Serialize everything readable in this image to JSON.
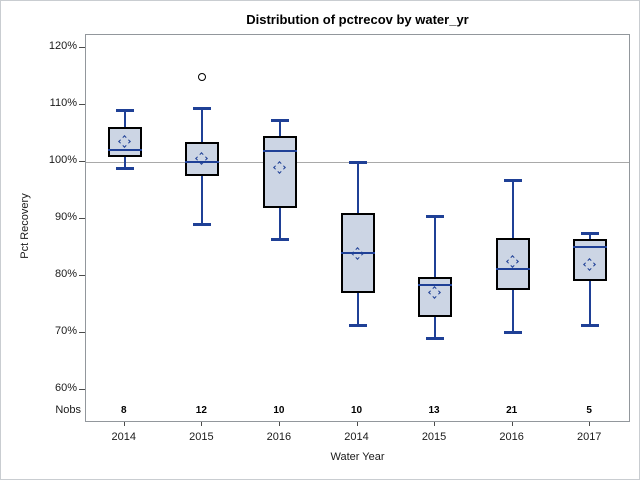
{
  "chart_data": {
    "type": "box",
    "title": "Distribution of pctrecov by water_yr",
    "xlabel": "Water Year",
    "ylabel": "Pct Recovery",
    "categories": [
      "2014",
      "2015",
      "2016",
      "2014",
      "2015",
      "2016",
      "2017"
    ],
    "nobs_label": "Nobs",
    "nobs": [
      8,
      12,
      10,
      10,
      13,
      21,
      5
    ],
    "y_ticks": [
      60,
      70,
      80,
      90,
      100,
      110,
      120
    ],
    "y_tick_suffix": "%",
    "ylim": [
      54.6,
      122.3
    ],
    "reference_line": 100,
    "grid": false,
    "legend": "none",
    "boxes": [
      {
        "category": "2014",
        "nobs": 8,
        "whisker_low": 98.7,
        "q1": 100.8,
        "median": 102.1,
        "q3": 106.2,
        "whisker_high": 109.2,
        "mean": 103.5,
        "outliers": []
      },
      {
        "category": "2015",
        "nobs": 12,
        "whisker_low": 89.0,
        "q1": 97.5,
        "median": 100.0,
        "q3": 103.5,
        "whisker_high": 109.4,
        "mean": 100.6,
        "outliers": [
          115
        ]
      },
      {
        "category": "2016",
        "nobs": 10,
        "whisker_low": 86.3,
        "q1": 92.0,
        "median": 102.0,
        "q3": 104.6,
        "whisker_high": 107.3,
        "mean": 99.0,
        "outliers": []
      },
      {
        "category": "2014",
        "nobs": 10,
        "whisker_low": 71.3,
        "q1": 77.0,
        "median": 84.0,
        "q3": 91.0,
        "whisker_high": 100.0,
        "mean": 83.8,
        "outliers": []
      },
      {
        "category": "2015",
        "nobs": 13,
        "whisker_low": 69.0,
        "q1": 72.8,
        "median": 78.5,
        "q3": 79.8,
        "whisker_high": 90.5,
        "mean": 77.0,
        "outliers": []
      },
      {
        "category": "2016",
        "nobs": 21,
        "whisker_low": 70.0,
        "q1": 77.6,
        "median": 81.2,
        "q3": 86.7,
        "whisker_high": 96.8,
        "mean": 82.5,
        "outliers": []
      },
      {
        "category": "2017",
        "nobs": 5,
        "whisker_low": 71.3,
        "q1": 79.2,
        "median": 85.1,
        "q3": 86.5,
        "whisker_high": 87.5,
        "mean": 82.0,
        "outliers": []
      }
    ],
    "colors": {
      "box_fill": "#ccd5e4",
      "box_border": "#000000",
      "whisker": "#1f4096",
      "median": "#1f4096",
      "mean_marker": "#1f4096",
      "reference_line": "#a9a9a9",
      "frame_border": "#92979c",
      "outer_border": "#c9cdd1",
      "outlier": "#000000"
    }
  }
}
